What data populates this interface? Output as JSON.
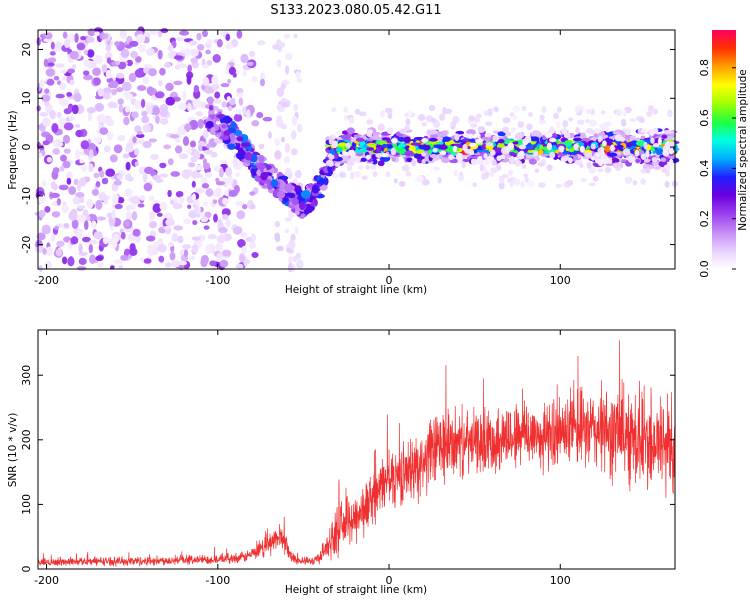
{
  "figure": {
    "title": "S133.2023.080.05.42.G11"
  },
  "chart_data": [
    {
      "type": "heatmap",
      "xlabel": "Height of straight line (km)",
      "ylabel": "Frequency (Hz)",
      "xlim": [
        -205,
        167
      ],
      "ylim": [
        -25,
        24
      ],
      "xticks": [
        -200,
        -100,
        0,
        100
      ],
      "yticks": [
        -20,
        -10,
        0,
        10,
        20
      ],
      "colorbar": {
        "label": "Normalized spectral amplitude",
        "range": [
          0,
          0.95
        ],
        "ticks": [
          0.0,
          0.2,
          0.4,
          0.6,
          0.8
        ],
        "tick_labels": [
          "0.0",
          "0.2",
          "0.4",
          "0.6",
          "0.8"
        ],
        "colormap": [
          "#ffffff",
          "#e8d0ff",
          "#c58cf5",
          "#9b40f0",
          "#6a00e0",
          "#2020ff",
          "#00b0ff",
          "#00ffe0",
          "#20ff40",
          "#a0ff00",
          "#ffff00",
          "#ffa000",
          "#ff3000",
          "#ff0060"
        ]
      },
      "features": {
        "noise_region_x": [
          -205,
          -70
        ],
        "descending_track": [
          [
            -105,
            6
          ],
          [
            -90,
            2
          ],
          [
            -80,
            -3
          ],
          [
            -70,
            -6
          ],
          [
            -60,
            -9
          ],
          [
            -50,
            -12
          ],
          [
            -40,
            -8
          ],
          [
            -35,
            -3
          ],
          [
            -30,
            -1
          ]
        ],
        "signal_band_center_hz": 0,
        "signal_band_x": [
          -35,
          167
        ]
      },
      "grid": false
    },
    {
      "type": "line",
      "xlabel": "Height of straight line (km)",
      "ylabel": "SNR (10 * v/v)",
      "xlim": [
        -205,
        167
      ],
      "ylim": [
        0,
        370
      ],
      "xticks": [
        -200,
        -100,
        0,
        100
      ],
      "yticks": [
        0,
        100,
        200,
        300
      ],
      "series": [
        {
          "color": "#f03030",
          "envelope_x": [
            -205,
            -180,
            -150,
            -120,
            -100,
            -85,
            -75,
            -68,
            -62,
            -58,
            -52,
            -45,
            -40,
            -35,
            -30,
            -25,
            -20,
            -15,
            -10,
            -5,
            0,
            10,
            20,
            25,
            30,
            40,
            50,
            60,
            70,
            80,
            90,
            100,
            110,
            120,
            130,
            140,
            150,
            160,
            167
          ],
          "envelope_mean": [
            10,
            12,
            12,
            14,
            15,
            18,
            28,
            45,
            50,
            22,
            12,
            12,
            20,
            40,
            60,
            70,
            80,
            90,
            110,
            125,
            140,
            150,
            165,
            180,
            190,
            195,
            195,
            200,
            205,
            210,
            205,
            210,
            215,
            215,
            210,
            210,
            200,
            195,
            190
          ],
          "noise_amplitude": [
            6,
            6,
            7,
            7,
            7,
            8,
            12,
            20,
            20,
            10,
            6,
            6,
            10,
            25,
            35,
            35,
            40,
            40,
            40,
            40,
            45,
            45,
            50,
            55,
            60,
            50,
            45,
            50,
            50,
            55,
            50,
            50,
            55,
            60,
            70,
            75,
            80,
            80,
            80
          ]
        }
      ],
      "grid": false
    }
  ]
}
